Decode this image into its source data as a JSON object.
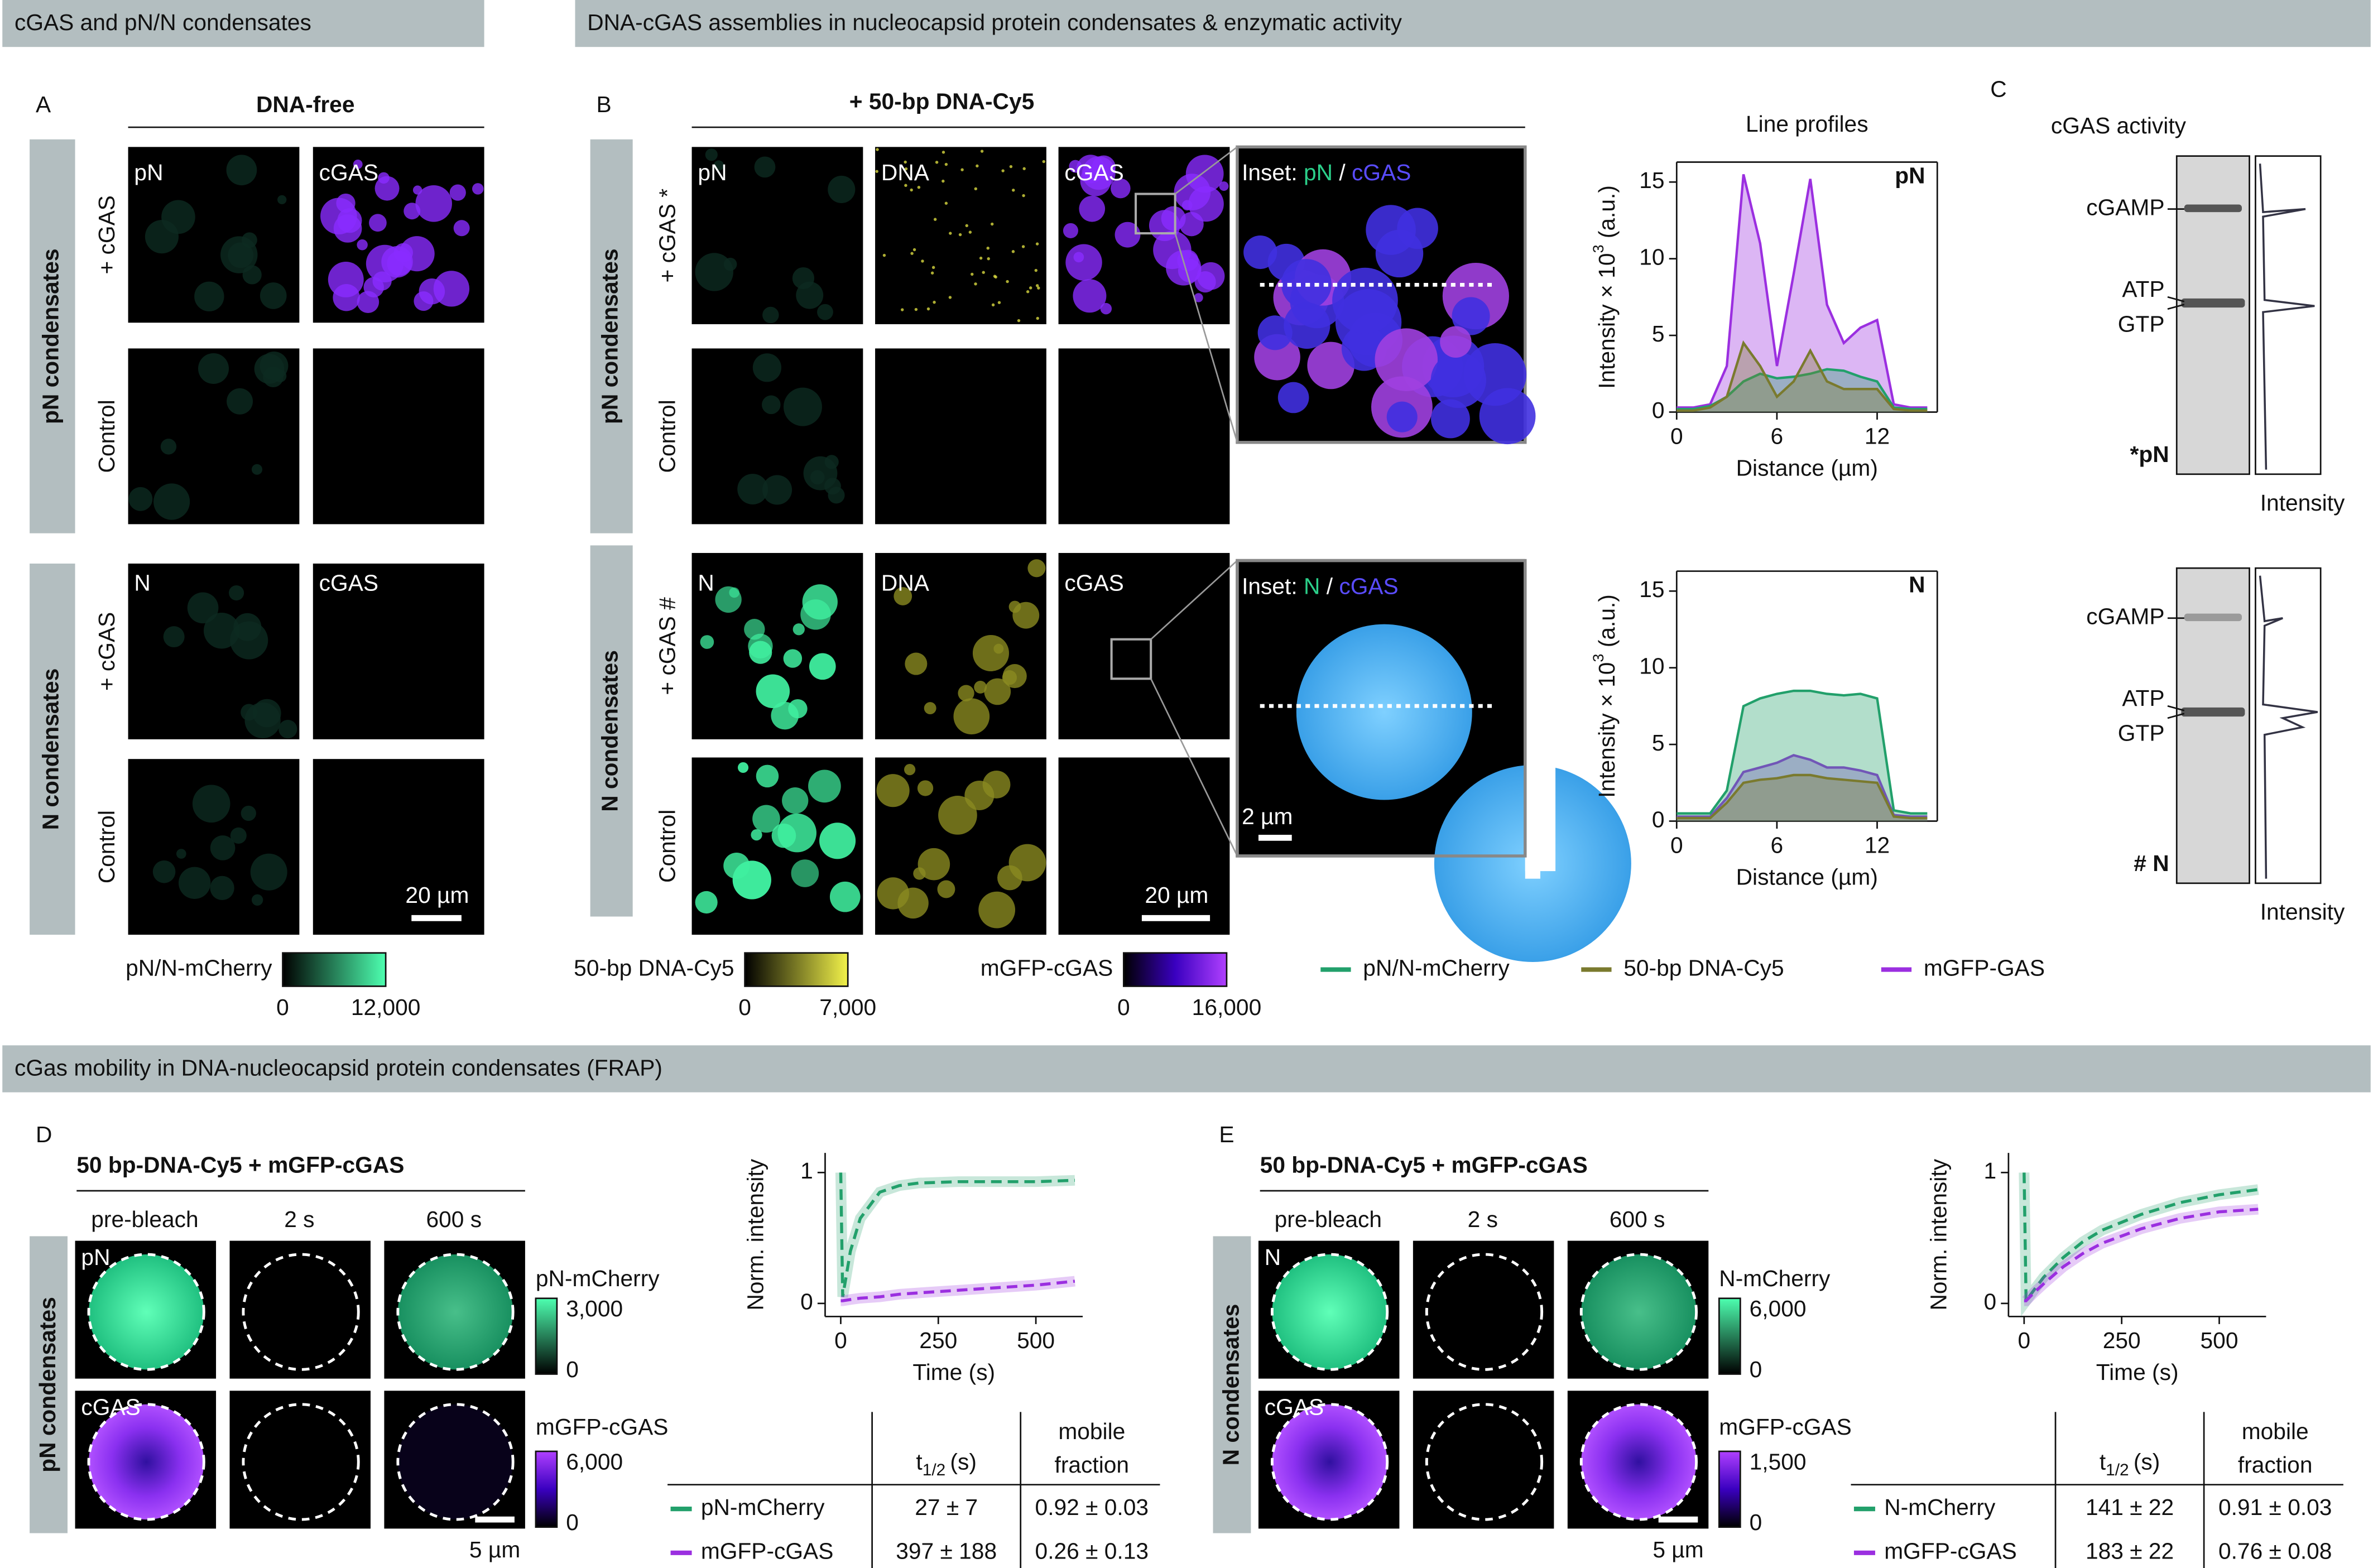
{
  "sections": {
    "a": "cGAS and pN/N condensates",
    "b": "DNA-cGAS assemblies in nucleocapsid protein condensates & enzymatic activity",
    "frap": "cGas mobility in DNA-nucleocapsid protein condensates (FRAP)"
  },
  "panel_a": {
    "letter": "A",
    "header": "DNA-free",
    "groups": [
      "pN condensates",
      "N condensates"
    ],
    "rows": [
      "+ cGAS",
      "Control",
      "+ cGAS",
      "Control"
    ],
    "channels": [
      [
        "pN",
        "cGAS"
      ],
      [
        "N",
        "cGAS"
      ]
    ],
    "scale_bar": "20 µm"
  },
  "panel_b": {
    "letter": "B",
    "header": "+ 50-bp DNA-Cy5",
    "groups": [
      "pN condensates",
      "N condensates"
    ],
    "rows": [
      "+ cGAS *",
      "Control",
      "+ cGAS #",
      "Control"
    ],
    "channels": [
      [
        "pN",
        "DNA",
        "cGAS"
      ],
      [
        "N",
        "DNA",
        "cGAS"
      ]
    ],
    "insets": [
      {
        "prefix": "Inset: ",
        "a": "pN",
        "sep": " / ",
        "b": "cGAS"
      },
      {
        "prefix": "Inset: ",
        "a": "N",
        "sep": " / ",
        "b": "cGAS"
      }
    ],
    "scale_bars": [
      "20 µm",
      "2 µm"
    ]
  },
  "colorbars": [
    {
      "name": "pN/N-mCherry",
      "ticks": [
        0,
        {
          "value": 12000,
          "label": "12,000"
        }
      ]
    },
    {
      "name": "50-bp DNA-Cy5",
      "ticks": [
        0,
        {
          "value": 7000,
          "label": "7,000"
        }
      ]
    },
    {
      "name": "mGFP-cGAS",
      "ticks": [
        0,
        {
          "value": 16000,
          "label": "16,000"
        }
      ]
    }
  ],
  "panel_c": {
    "letter": "C",
    "title": "cGAS activity",
    "lanes": [
      {
        "label": "*pN",
        "bands": [
          "cGAMP",
          "ATP",
          "GTP"
        ],
        "xlabel": "Intensity"
      },
      {
        "label": "# N",
        "bands": [
          "cGAMP",
          "ATP",
          "GTP"
        ],
        "xlabel": "Intensity"
      }
    ]
  },
  "panel_d": {
    "letter": "D",
    "title": "50 bp-DNA-Cy5 + mGFP-cGAS",
    "timepoints": [
      "pre-bleach",
      "2 s",
      "600 s"
    ],
    "group": "pN condensates",
    "channels": [
      "pN",
      "cGAS"
    ],
    "colorbars": [
      {
        "name": "pN-mCherry",
        "ticks": [
          {
            "value": 3000,
            "label": "3,000"
          },
          0
        ]
      },
      {
        "name": "mGFP-cGAS",
        "ticks": [
          {
            "value": 6000,
            "label": "6,000"
          },
          0
        ]
      }
    ],
    "scale_bar": "5 µm",
    "table": {
      "t": "t",
      "t_sub": "1/2",
      "t_unit": "(s)",
      "mobile": [
        "mobile",
        "fraction"
      ],
      "rows": [
        [
          "pN-mCherry",
          "27 ± 7",
          "0.92 ± 0.03"
        ],
        [
          "mGFP-cGAS",
          "397 ± 188",
          "0.26 ± 0.13"
        ]
      ]
    }
  },
  "panel_e": {
    "letter": "E",
    "title": "50 bp-DNA-Cy5 + mGFP-cGAS",
    "timepoints": [
      "pre-bleach",
      "2 s",
      "600 s"
    ],
    "group": "N condensates",
    "channels": [
      "N",
      "cGAS"
    ],
    "colorbars": [
      {
        "name": "N-mCherry",
        "ticks": [
          {
            "value": 6000,
            "label": "6,000"
          },
          0
        ]
      },
      {
        "name": "mGFP-cGAS",
        "ticks": [
          {
            "value": 1500,
            "label": "1,500"
          },
          0
        ]
      }
    ],
    "scale_bar": "5 µm",
    "table": {
      "t": "t",
      "t_sub": "1/2",
      "t_unit": "(s)",
      "mobile": [
        "mobile",
        "fraction"
      ],
      "rows": [
        [
          "N-mCherry",
          "141 ± 22",
          "0.91 ± 0.03"
        ],
        [
          "mGFP-cGAS",
          "183 ± 22",
          "0.76 ± 0.08"
        ]
      ]
    }
  },
  "chart_data": [
    {
      "type": "line",
      "area": true,
      "title": "Line profiles",
      "label": "pN",
      "xlabel": "Distance (µm)",
      "ylabel": "Intensity × 10",
      "ylabel_sup": "3",
      "ylabel_unit": " (a.u.)",
      "x": [
        0,
        1,
        2,
        3,
        4,
        5,
        6,
        7,
        8,
        9,
        10,
        11,
        12,
        13,
        14,
        15
      ],
      "xlim": [
        0,
        15.6
      ],
      "xticks": [
        0,
        6,
        12
      ],
      "ylim": [
        0,
        16.3
      ],
      "yticks": [
        0,
        5,
        10,
        15
      ],
      "series": [
        {
          "name": "pN/N-mCherry",
          "color": "#22a06b",
          "values": [
            0.2,
            0.2,
            0.4,
            1,
            2,
            2.5,
            2.2,
            2.3,
            2.5,
            2.8,
            2.7,
            2.3,
            2,
            0.3,
            0.2,
            0.2
          ]
        },
        {
          "name": "50-bp DNA-Cy5",
          "color": "#7a7a2e",
          "values": [
            0.1,
            0.1,
            0.3,
            1,
            4.5,
            3,
            1,
            2,
            4,
            2,
            1.5,
            1.5,
            1.5,
            0.2,
            0.1,
            0.1
          ]
        },
        {
          "name": "mGFP-GAS",
          "color": "#9b2fe0",
          "values": [
            0.3,
            0.3,
            0.5,
            3,
            15.5,
            11,
            3,
            9,
            15.2,
            7,
            4.5,
            5.5,
            6,
            0.5,
            0.3,
            0.3
          ]
        }
      ]
    },
    {
      "type": "line",
      "area": true,
      "label": "N",
      "xlabel": "Distance (µm)",
      "ylabel": "Intensity × 10",
      "ylabel_sup": "3",
      "ylabel_unit": " (a.u.)",
      "x": [
        0,
        1,
        2,
        3,
        4,
        5,
        6,
        7,
        8,
        9,
        10,
        11,
        12,
        13,
        14,
        15
      ],
      "xlim": [
        0,
        15.6
      ],
      "xticks": [
        0,
        6,
        12
      ],
      "ylim": [
        0,
        16.3
      ],
      "yticks": [
        0,
        5,
        10,
        15
      ],
      "series": [
        {
          "color": "#22a06b",
          "values": [
            0.5,
            0.5,
            0.5,
            2,
            7.5,
            8,
            8.3,
            8.5,
            8.5,
            8.3,
            8.2,
            8.3,
            8,
            0.7,
            0.5,
            0.5
          ]
        },
        {
          "color": "#7a7a2e",
          "values": [
            0.2,
            0.2,
            0.2,
            1.2,
            2.5,
            2.7,
            2.8,
            3,
            3,
            2.8,
            2.7,
            2.6,
            2.5,
            0.3,
            0.2,
            0.2
          ]
        },
        {
          "color": "#9b2fe0",
          "values": [
            0.3,
            0.3,
            0.3,
            1.5,
            3.2,
            3.5,
            3.8,
            4.3,
            4,
            3.5,
            3.5,
            3.3,
            3,
            0.4,
            0.3,
            0.3
          ]
        }
      ]
    },
    {
      "type": "line",
      "dashed": true,
      "xlabel": "Time (s)",
      "ylabel": "Norm. intensity",
      "x": [
        0,
        5,
        25,
        50,
        100,
        150,
        200,
        300,
        400,
        500,
        600
      ],
      "xlim": [
        -40,
        620
      ],
      "xticks": [
        0,
        250,
        500
      ],
      "ylim": [
        -0.1,
        1.15
      ],
      "yticks": [
        0,
        1
      ],
      "series": [
        {
          "color": "#22a06b",
          "values": [
            1,
            0.05,
            0.4,
            0.65,
            0.85,
            0.9,
            0.92,
            0.93,
            0.93,
            0.93,
            0.94
          ]
        },
        {
          "color": "#9b2fe0",
          "values": [
            0.02,
            0.02,
            0.03,
            0.04,
            0.05,
            0.07,
            0.08,
            0.1,
            0.12,
            0.14,
            0.17
          ]
        }
      ]
    },
    {
      "type": "line",
      "dashed": true,
      "xlabel": "Time (s)",
      "ylabel": "Norm. intensity",
      "x": [
        0,
        5,
        25,
        50,
        100,
        150,
        200,
        300,
        400,
        500,
        600
      ],
      "xlim": [
        -40,
        620
      ],
      "xticks": [
        0,
        250,
        500
      ],
      "ylim": [
        -0.1,
        1.15
      ],
      "yticks": [
        0,
        1
      ],
      "series": [
        {
          "color": "#22a06b",
          "values": [
            1,
            0.02,
            0.1,
            0.2,
            0.35,
            0.47,
            0.56,
            0.68,
            0.77,
            0.83,
            0.87
          ]
        },
        {
          "color": "#9b2fe0",
          "values": [
            0.02,
            0.02,
            0.08,
            0.15,
            0.28,
            0.38,
            0.46,
            0.57,
            0.65,
            0.7,
            0.72
          ]
        }
      ]
    }
  ]
}
